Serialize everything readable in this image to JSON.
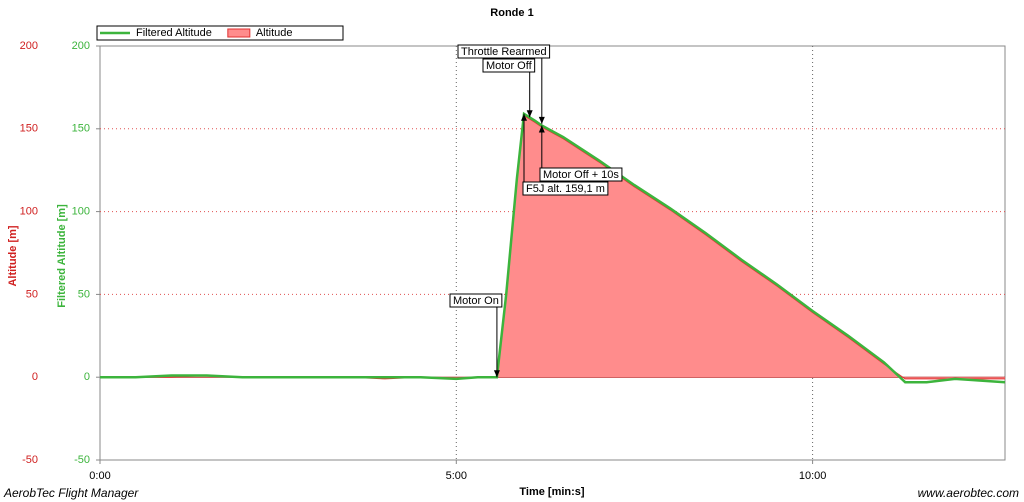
{
  "chart_data": {
    "type": "line",
    "title": "Ronde 1",
    "x_label": "Time [min:s]",
    "y_label": "Altitude [m]",
    "y2_label": "Filtered Altitude [m]",
    "footer_left": "AerobTec Flight Manager",
    "footer_right": "www.aerobtec.com",
    "x": [
      0,
      0.5,
      1,
      1.5,
      2,
      2.5,
      3,
      3.5,
      4,
      4.5,
      5,
      5.3,
      5.57,
      5.7,
      5.85,
      5.95,
      6.1,
      6.2,
      6.5,
      7,
      7.5,
      8,
      8.5,
      9,
      9.5,
      10,
      10.5,
      11,
      11.3,
      11.6,
      12,
      12.7
    ],
    "series": [
      {
        "name": "Filtered Altitude",
        "type": "line",
        "color": "#3cb43c",
        "axis": "y2",
        "values": [
          0,
          0,
          1,
          1,
          0,
          0,
          0,
          0,
          0,
          0,
          -1,
          0,
          0,
          50,
          120,
          159,
          155,
          152,
          145,
          131,
          116,
          102,
          87,
          71,
          56,
          40,
          25,
          9,
          -3,
          -3,
          -1,
          -3
        ]
      },
      {
        "name": "Altitude",
        "type": "area",
        "color": "#e03232",
        "fill": "#ff8c8c",
        "axis": "y",
        "values": [
          0,
          0,
          0,
          1,
          0,
          0,
          0,
          0,
          -1,
          0,
          -1,
          0,
          0,
          48,
          118,
          158,
          154,
          151,
          144,
          130,
          115,
          101,
          86,
          70,
          55,
          39,
          24,
          8,
          -1,
          -1,
          -1,
          -1
        ]
      }
    ],
    "xlim": [
      0,
      12.7
    ],
    "xticks": [
      {
        "value": 0,
        "label": "0:00"
      },
      {
        "value": 5,
        "label": "5:00"
      },
      {
        "value": 10,
        "label": "10:00"
      }
    ],
    "ylim": [
      -50,
      200
    ],
    "yticks": [
      -50,
      0,
      50,
      100,
      150,
      200
    ],
    "y2lim": [
      -50,
      200
    ],
    "y2ticks": [
      -50,
      0,
      50,
      100,
      150,
      200
    ],
    "y_color": "#d02020",
    "y2_color": "#3cb43c",
    "grid": true,
    "legend": "top-left",
    "annotations": [
      {
        "text": "Motor On",
        "x": 5.57,
        "y": 0
      },
      {
        "text": "Throttle Rearmed",
        "x": 6.2,
        "y": 153
      },
      {
        "text": "Motor Off",
        "x": 6.03,
        "y": 157
      },
      {
        "text": "Motor Off + 10s",
        "x": 6.2,
        "y": 152
      },
      {
        "text": "F5J alt. 159,1 m",
        "x": 5.95,
        "y": 159.1
      }
    ]
  }
}
